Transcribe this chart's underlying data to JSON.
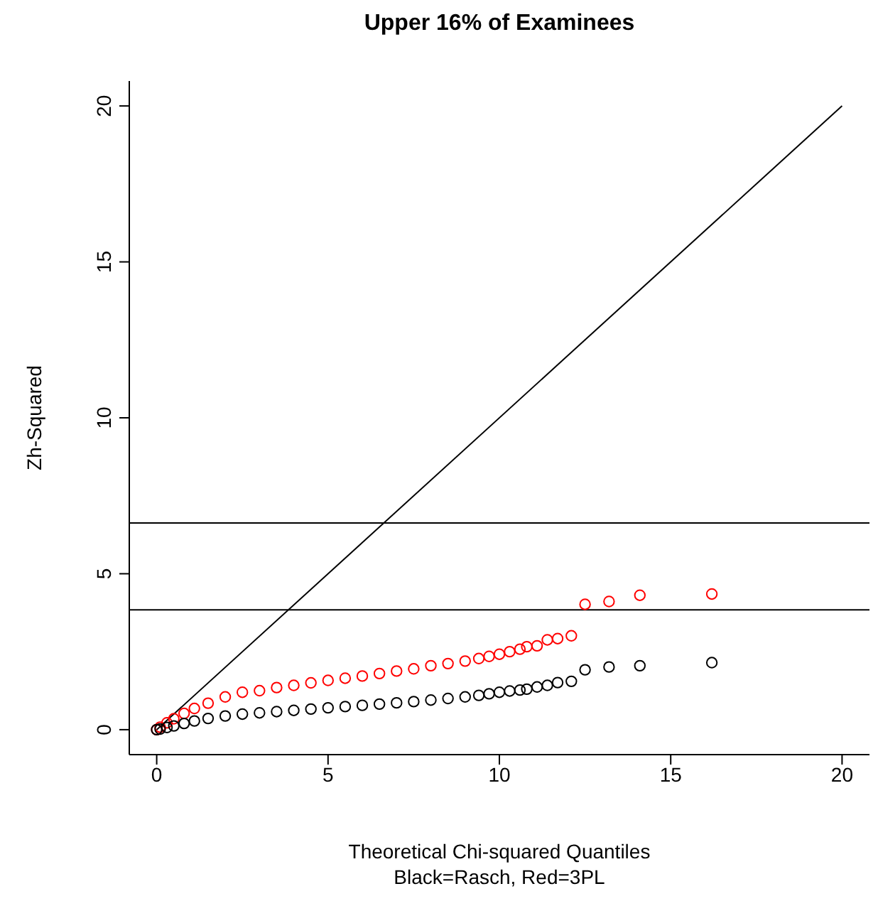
{
  "chart_data": {
    "type": "scatter",
    "title": "Upper 16% of Examinees",
    "xlabel": "Theoretical Chi-squared Quantiles",
    "ylabel": "Zh-Squared",
    "annotations": [
      "Black=Rasch, Red=3PL"
    ],
    "x": [
      0,
      0.1,
      0.3,
      0.5,
      0.8,
      1.1,
      1.5,
      2,
      2.5,
      3,
      3.5,
      4,
      4.5,
      5,
      5.5,
      6,
      6.5,
      7,
      7.5,
      8,
      8.5,
      9,
      9.4,
      9.7,
      10,
      10.3,
      10.6,
      10.8,
      11.1,
      11.4,
      11.7,
      12.1,
      12.5,
      13.2,
      14.1,
      16.2
    ],
    "series": [
      {
        "color": "#ff0000",
        "values": [
          0,
          0.08,
          0.22,
          0.35,
          0.52,
          0.68,
          0.85,
          1.05,
          1.2,
          1.25,
          1.35,
          1.42,
          1.5,
          1.58,
          1.65,
          1.72,
          1.8,
          1.88,
          1.95,
          2.05,
          2.12,
          2.2,
          2.28,
          2.35,
          2.42,
          2.5,
          2.58,
          2.66,
          2.69,
          2.88,
          2.92,
          3.01,
          4.02,
          4.11,
          4.31,
          4.35
        ]
      },
      {
        "color": "#000000",
        "values": [
          0,
          0.02,
          0.07,
          0.12,
          0.2,
          0.28,
          0.36,
          0.44,
          0.5,
          0.54,
          0.58,
          0.62,
          0.66,
          0.7,
          0.74,
          0.78,
          0.82,
          0.86,
          0.9,
          0.95,
          1,
          1.05,
          1.1,
          1.15,
          1.2,
          1.24,
          1.27,
          1.3,
          1.37,
          1.42,
          1.51,
          1.55,
          1.92,
          2.01,
          2.05,
          2.15
        ]
      },
      {
        "type": "line",
        "marker": "none",
        "color": "#000000",
        "x": [
          0,
          20
        ],
        "values": [
          0,
          20
        ]
      }
    ],
    "ref_lines": [
      {
        "axis": "y",
        "value": 6.63,
        "color": "#000000"
      },
      {
        "axis": "y",
        "value": 3.84,
        "color": "#000000"
      }
    ],
    "xlim": [
      -0.8,
      20.8
    ],
    "ylim": [
      -0.8,
      20.8
    ],
    "xticks": [
      0,
      5,
      10,
      15,
      20
    ],
    "yticks": [
      0,
      5,
      10,
      15,
      20
    ],
    "marker": "circle",
    "grid": false
  }
}
